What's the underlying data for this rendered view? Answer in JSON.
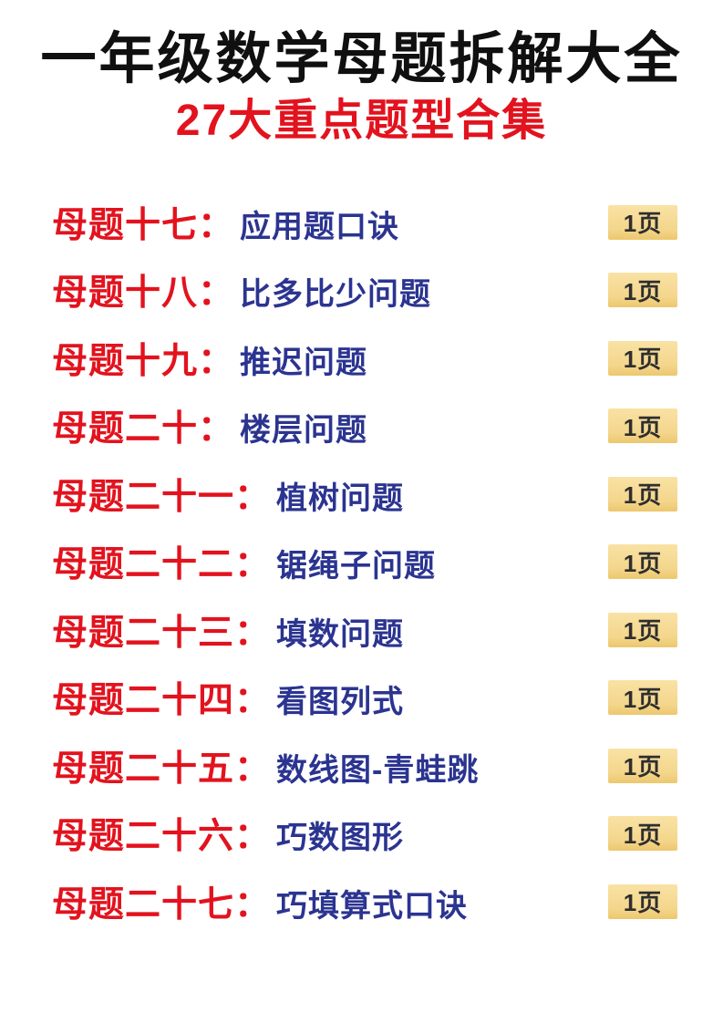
{
  "page": {
    "title": "一年级数学母题拆解大全",
    "subtitle": "27大重点题型合集"
  },
  "list": {
    "items": [
      {
        "label": "母题十七：",
        "topic": "应用题口诀",
        "pages": "1页"
      },
      {
        "label": "母题十八：",
        "topic": "比多比少问题",
        "pages": "1页"
      },
      {
        "label": "母题十九：",
        "topic": "推迟问题",
        "pages": "1页"
      },
      {
        "label": "母题二十：",
        "topic": "楼层问题",
        "pages": "1页"
      },
      {
        "label": "母题二十一：",
        "topic": "植树问题",
        "pages": "1页"
      },
      {
        "label": "母题二十二：",
        "topic": "锯绳子问题",
        "pages": "1页"
      },
      {
        "label": "母题二十三：",
        "topic": "填数问题",
        "pages": "1页"
      },
      {
        "label": "母题二十四：",
        "topic": "看图列式",
        "pages": "1页"
      },
      {
        "label": "母题二十五：",
        "topic": "数线图-青蛙跳",
        "pages": "1页"
      },
      {
        "label": "母题二十六：",
        "topic": "巧数图形",
        "pages": "1页"
      },
      {
        "label": "母题二十七：",
        "topic": "巧填算式口诀",
        "pages": "1页"
      }
    ]
  },
  "colors": {
    "title": "#101010",
    "accent_red": "#e2131e",
    "topic_blue": "#2b3490",
    "badge_bg": "#f4d68c",
    "badge_bg_light": "#f9e2a4",
    "badge_bg_dark": "#ecc76d",
    "badge_text": "#2e2e2e"
  }
}
